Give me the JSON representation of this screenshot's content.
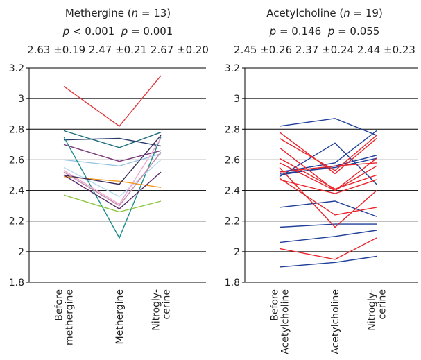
{
  "chart_data": [
    {
      "type": "line",
      "group": "Methergine",
      "n_label": "n",
      "n_value": "= 13",
      "pvals": "p < 0.001  p = 0.001",
      "stats": "2.63 ±0.19 2.47 ±0.21 2.67 ±0.20",
      "categories": [
        "Before methergine",
        "Methergine",
        "Nitrogly-cerine"
      ],
      "category_lines": [
        [
          "Before",
          "methergine"
        ],
        [
          "Methergine"
        ],
        [
          "Nitrogly-",
          "cerine"
        ]
      ],
      "ylim": [
        1.8,
        3.2
      ],
      "yticks": [
        "1.8",
        "2",
        "2.2",
        "2.4",
        "2.6",
        "2.8",
        "3",
        "3.2"
      ],
      "grid": true,
      "series": [
        {
          "color": "#e03a3e",
          "values": [
            3.08,
            2.82,
            3.15
          ]
        },
        {
          "color": "#1a6e7a",
          "values": [
            2.79,
            2.68,
            2.78
          ]
        },
        {
          "color": "#2a3e6e",
          "values": [
            2.73,
            2.74,
            2.69
          ]
        },
        {
          "color": "#7b3a78",
          "values": [
            2.7,
            2.59,
            2.66
          ]
        },
        {
          "color": "#9ac6e4",
          "values": [
            2.6,
            2.56,
            2.64
          ]
        },
        {
          "color": "#1c8c8c",
          "values": [
            2.75,
            2.09,
            2.75
          ]
        },
        {
          "color": "#b8d8f0",
          "values": [
            2.55,
            2.36,
            2.6
          ]
        },
        {
          "color": "#f0a8d0",
          "values": [
            2.53,
            2.31,
            2.74
          ]
        },
        {
          "color": "#f39a1e",
          "values": [
            2.49,
            2.46,
            2.42
          ]
        },
        {
          "color": "#3a2a5a",
          "values": [
            2.5,
            2.44,
            2.76
          ]
        },
        {
          "color": "#5a2a6a",
          "values": [
            2.5,
            2.28,
            2.52
          ]
        },
        {
          "color": "#c08aa8",
          "values": [
            2.52,
            2.3,
            2.65
          ]
        },
        {
          "color": "#8dc63f",
          "values": [
            2.37,
            2.26,
            2.33
          ]
        }
      ]
    },
    {
      "type": "line",
      "group": "Acetylcholine",
      "n_label": "n",
      "n_value": "= 19",
      "pvals": "p = 0.146  p = 0.055",
      "stats": "2.45 ±0.26 2.37 ±0.24 2.44 ±0.23",
      "categories": [
        "Before Acetylcholine",
        "Acetylcholine",
        "Nitrogly-cerine"
      ],
      "category_lines": [
        [
          "Before",
          "Acetylcholine"
        ],
        [
          "Acetylcholine"
        ],
        [
          "Nitrogly-",
          "cerine"
        ]
      ],
      "ylim": [
        1.8,
        3.2
      ],
      "yticks": [
        "1.8",
        "2",
        "2.2",
        "2.4",
        "2.6",
        "2.8",
        "3",
        "3.2"
      ],
      "grid": true,
      "series": [
        {
          "color": "#1f3f99",
          "values": [
            2.82,
            2.87,
            2.76
          ]
        },
        {
          "color": "#1f3f99",
          "values": [
            2.49,
            2.71,
            2.44
          ]
        },
        {
          "color": "#1f3f99",
          "values": [
            2.52,
            2.58,
            2.79
          ]
        },
        {
          "color": "#1f3f99",
          "values": [
            2.5,
            2.56,
            2.63
          ]
        },
        {
          "color": "#1f3f99",
          "values": [
            2.51,
            2.55,
            2.61
          ]
        },
        {
          "color": "#1f3f99",
          "values": [
            2.29,
            2.33,
            2.23
          ]
        },
        {
          "color": "#1f3f99",
          "values": [
            2.16,
            2.18,
            2.18
          ]
        },
        {
          "color": "#1f3f99",
          "values": [
            2.06,
            2.1,
            2.14
          ]
        },
        {
          "color": "#1f3f99",
          "values": [
            1.9,
            1.93,
            1.97
          ]
        },
        {
          "color": "#e8252b",
          "values": [
            2.78,
            2.51,
            2.74
          ]
        },
        {
          "color": "#e8252b",
          "values": [
            2.74,
            2.53,
            2.76
          ]
        },
        {
          "color": "#e8252b",
          "values": [
            2.68,
            2.4,
            2.61
          ]
        },
        {
          "color": "#e8252b",
          "values": [
            2.61,
            2.41,
            2.5
          ]
        },
        {
          "color": "#e8252b",
          "values": [
            2.58,
            2.4,
            2.56
          ]
        },
        {
          "color": "#e8252b",
          "values": [
            2.55,
            2.16,
            2.4
          ]
        },
        {
          "color": "#e8252b",
          "values": [
            2.48,
            2.24,
            2.29
          ]
        },
        {
          "color": "#e8252b",
          "values": [
            2.02,
            1.95,
            2.09
          ]
        },
        {
          "color": "#e8252b",
          "values": [
            2.47,
            2.38,
            2.47
          ]
        },
        {
          "color": "#e8252b",
          "values": [
            2.52,
            2.56,
            2.58
          ]
        }
      ]
    }
  ]
}
